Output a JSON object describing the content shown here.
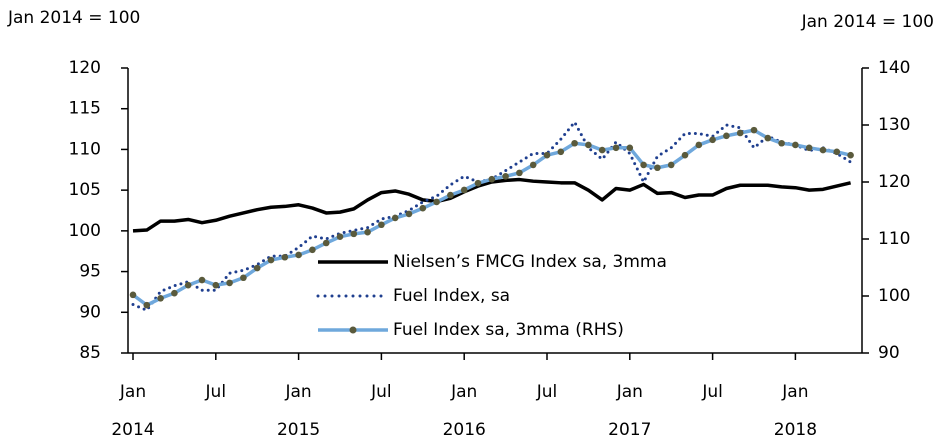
{
  "chart_data": {
    "type": "line",
    "y_label": "Jan 2014 = 100",
    "y2_label": "Jan 2014 = 100",
    "categories": [
      "Jan",
      null,
      null,
      null,
      null,
      null,
      "Jul",
      null,
      null,
      null,
      null,
      null,
      "Jan",
      null,
      null,
      null,
      null,
      null,
      "Jul",
      null,
      null,
      null,
      null,
      null,
      "Jan",
      null,
      null,
      null,
      null,
      null,
      "Jul",
      null,
      null,
      null,
      null,
      null,
      "Jan",
      null,
      null,
      null,
      null,
      null,
      "Jul",
      null,
      null,
      null,
      null,
      null,
      "Jan",
      null,
      null,
      null,
      null
    ],
    "year_labels": [
      "2014",
      "2015",
      "2016",
      "2017",
      "2018"
    ],
    "ylim": [
      85,
      120
    ],
    "yticks": [
      85,
      90,
      95,
      100,
      105,
      110,
      115,
      120
    ],
    "y2lim": [
      90,
      140
    ],
    "y2ticks": [
      90,
      100,
      110,
      120,
      130,
      140
    ],
    "series": [
      {
        "name": "Nielsen’s FMCG Index  sa, 3mma",
        "color": "#000000",
        "dash": "solid",
        "markers": false,
        "values": [
          100,
          100.1,
          101.2,
          101.2,
          101.4,
          101.0,
          101.3,
          101.8,
          102.2,
          102.6,
          102.9,
          103.0,
          103.2,
          102.8,
          102.2,
          102.3,
          102.7,
          103.8,
          104.7,
          104.9,
          104.5,
          103.8,
          103.6,
          104.0,
          104.8,
          105.5,
          106.0,
          106.2,
          106.3,
          106.1,
          106.0,
          105.9,
          105.9,
          105.0,
          103.8,
          105.2,
          105.0,
          105.7,
          104.6,
          104.7,
          104.1,
          104.4,
          104.4,
          105.2,
          105.6,
          105.6,
          105.6,
          105.4,
          105.3,
          105.0,
          105.1,
          105.5,
          105.9
        ]
      },
      {
        "name": "Fuel Index, sa",
        "color": "#1f3f8f",
        "dash": "dotted",
        "markers": false,
        "axis": "y2",
        "values": [
          98.5,
          97.5,
          100.8,
          101.8,
          102.5,
          101.0,
          101.0,
          104.0,
          104.5,
          105.5,
          107.0,
          107.0,
          108.5,
          110.5,
          110.0,
          111.0,
          111.5,
          112.0,
          113.5,
          114.0,
          115.0,
          116.5,
          117.5,
          119.5,
          121.0,
          120.0,
          120.5,
          122.0,
          123.5,
          125.0,
          125.0,
          127.5,
          130.5,
          126.0,
          124.0,
          127.0,
          125.0,
          120.0,
          124.5,
          126.0,
          128.5,
          128.5,
          128.0,
          130.0,
          129.5,
          126.0,
          128.0,
          127.0,
          126.5,
          125.5,
          126.0,
          125.0,
          123.5
        ]
      },
      {
        "name": "Fuel Index sa, 3mma (RHS)",
        "color": "#6fa8dc",
        "dash": "solid",
        "markers": true,
        "marker_color": "#5a5a3c",
        "axis": "y2",
        "values": [
          100.2,
          98.4,
          99.6,
          100.5,
          101.9,
          102.8,
          101.9,
          102.3,
          103.2,
          104.9,
          106.3,
          106.8,
          107.2,
          108.1,
          109.3,
          110.4,
          110.9,
          111.2,
          112.5,
          113.7,
          114.4,
          115.4,
          116.5,
          117.7,
          118.6,
          119.8,
          120.5,
          121.0,
          121.6,
          123.0,
          124.7,
          125.3,
          126.8,
          126.5,
          125.6,
          126.0,
          126.0,
          123.0,
          122.5,
          123.0,
          124.7,
          126.5,
          127.4,
          128.1,
          128.6,
          129.1,
          127.7,
          126.8,
          126.5,
          126.0,
          125.6,
          125.3,
          124.7
        ]
      }
    ]
  }
}
